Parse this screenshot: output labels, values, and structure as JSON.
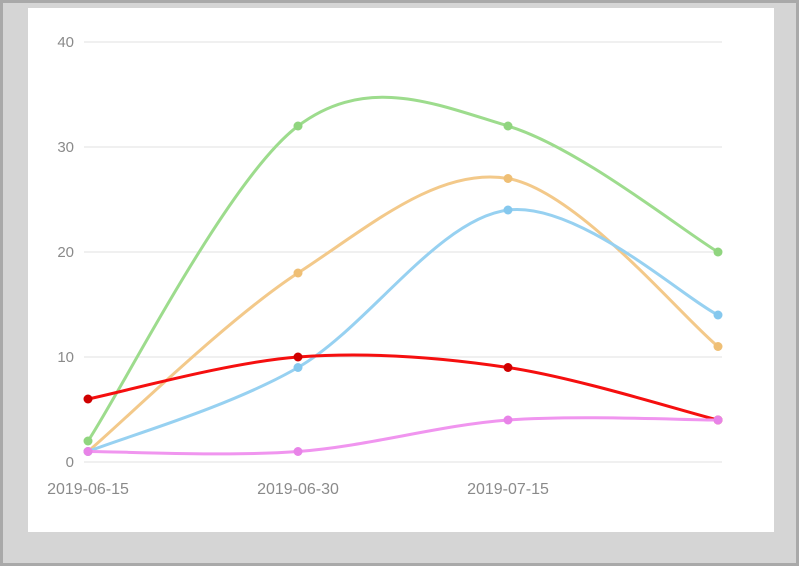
{
  "window": {
    "background": "#d5d5d5",
    "frame_border_color": "#a9a9a9",
    "panel_background": "#ffffff"
  },
  "chart_data": {
    "type": "line",
    "title": "",
    "xlabel": "",
    "ylabel": "",
    "smooth": true,
    "grid": true,
    "legend": false,
    "ylim": [
      0,
      40
    ],
    "y_ticks": [
      0,
      10,
      20,
      30,
      40
    ],
    "num_x_points": 4,
    "x_tick_labels": [
      "2019-06-15",
      "2019-06-30",
      "2019-07-15"
    ],
    "grid_color": "#e2e2e2",
    "axis_label_color": "#8a8a8a",
    "series": [
      {
        "name": "green",
        "color": "#9ddc8d",
        "marker_color": "#90d57f",
        "values": [
          2,
          32,
          32,
          20
        ]
      },
      {
        "name": "tan",
        "color": "#f3c98a",
        "marker_color": "#efbf75",
        "values": [
          1,
          18,
          27,
          11
        ]
      },
      {
        "name": "blue",
        "color": "#97d1f1",
        "marker_color": "#85c8ee",
        "values": [
          1,
          9,
          24,
          14
        ]
      },
      {
        "name": "red",
        "color": "#f50f0f",
        "marker_color": "#cf0000",
        "values": [
          6,
          10,
          9,
          4
        ]
      },
      {
        "name": "violet",
        "color": "#f095ef",
        "marker_color": "#e883e8",
        "values": [
          1,
          1,
          4,
          4
        ]
      }
    ]
  }
}
